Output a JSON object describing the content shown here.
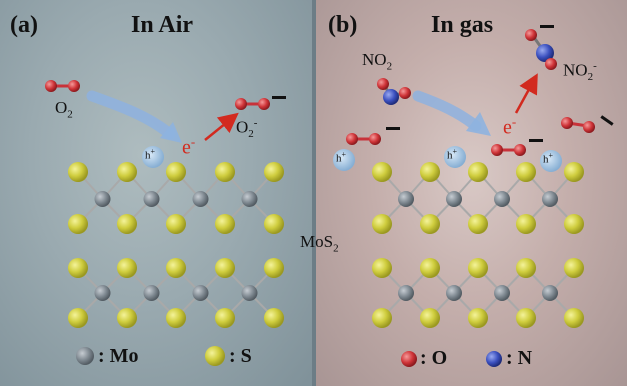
{
  "panel_a": {
    "label": "(a)",
    "title": "In Air",
    "molecule_in": "O",
    "molecule_in_sub": "2",
    "electron": "e",
    "electron_sup": "-",
    "molecule_out": "O",
    "molecule_out_sub": "2",
    "molecule_out_sup": "-",
    "hole": "h",
    "hole_sup": "+"
  },
  "panel_b": {
    "label": "(b)",
    "title": "In gas",
    "molecule_in": "NO",
    "molecule_in_sub": "2",
    "electron": "e",
    "electron_sup": "-",
    "molecule_out": "NO",
    "molecule_out_sub": "2",
    "molecule_out_sup": "-",
    "hole": "h",
    "hole_sup": "+"
  },
  "center_label": "MoS",
  "center_label_sub": "2",
  "legend_a": [
    {
      "symbol": ": Mo",
      "color": "#7d8890"
    },
    {
      "symbol": ": S",
      "color": "#c9c83c"
    }
  ],
  "legend_b": [
    {
      "symbol": ": O",
      "color": "#c8323a"
    },
    {
      "symbol": ": N",
      "color": "#3a4fb8"
    }
  ],
  "colors": {
    "mo_atom": "#7d8890",
    "s_atom": "#c9c83c",
    "o_atom": "#c8323a",
    "n_atom": "#3a4fb8",
    "electron_red": "#d22a1f",
    "hole_blue": "#8fb4d6"
  }
}
